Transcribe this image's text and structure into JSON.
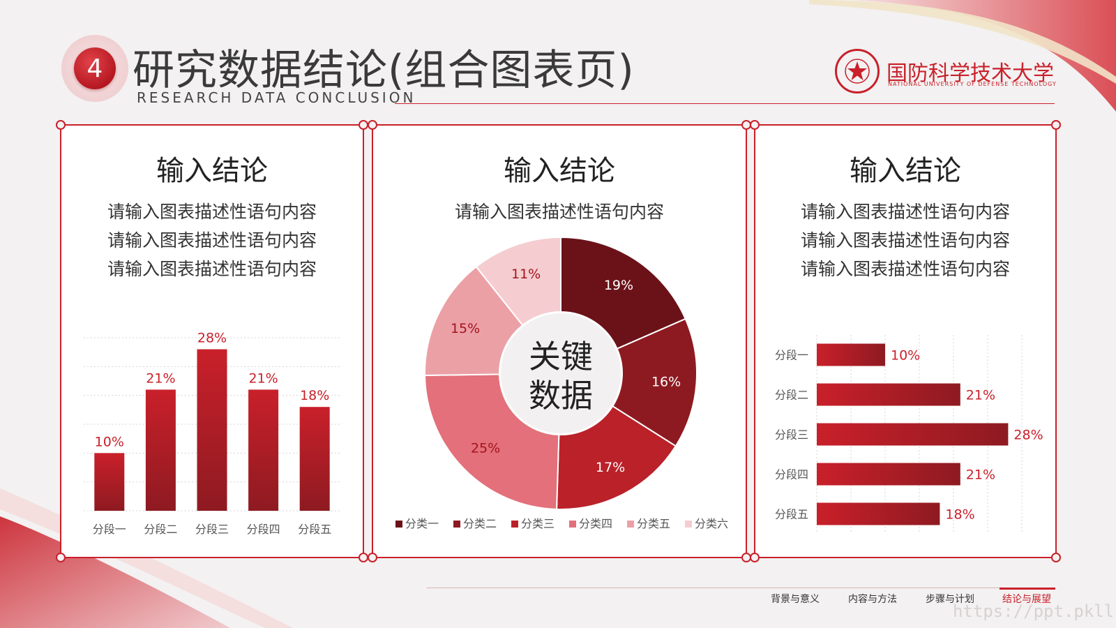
{
  "header": {
    "section_number": "4",
    "title": "研究数据结论(组合图表页)",
    "subtitle": "RESEARCH DATA CONCLUSION",
    "university_cn": "国防科学技术大学",
    "university_en": "NATIONAL UNIVERSITY OF DEFENSE TECHNOLOGY"
  },
  "panels": [
    {
      "heading": "输入结论",
      "lines": [
        "请输入图表描述性语句内容",
        "请输入图表描述性语句内容",
        "请输入图表描述性语句内容"
      ]
    },
    {
      "heading": "输入结论",
      "lines": [
        "请输入图表描述性语句内容"
      ],
      "center_label_1": "关键",
      "center_label_2": "数据"
    },
    {
      "heading": "输入结论",
      "lines": [
        "请输入图表描述性语句内容",
        "请输入图表描述性语句内容",
        "请输入图表描述性语句内容"
      ]
    }
  ],
  "chart_data": [
    {
      "type": "bar",
      "orientation": "vertical",
      "categories": [
        "分段一",
        "分段二",
        "分段三",
        "分段四",
        "分段五"
      ],
      "values": [
        10,
        21,
        28,
        21,
        18
      ],
      "value_labels": [
        "10%",
        "21%",
        "28%",
        "21%",
        "18%"
      ],
      "ylim": [
        0,
        30
      ],
      "grid": true
    },
    {
      "type": "pie",
      "donut": true,
      "categories": [
        "分类一",
        "分类二",
        "分类三",
        "分类四",
        "分类五",
        "分类六"
      ],
      "values": [
        19,
        16,
        17,
        25,
        15,
        11
      ],
      "value_labels": [
        "19%",
        "16%",
        "17%",
        "25%",
        "15%",
        "11%"
      ],
      "colors": [
        "#6b1219",
        "#8e1a21",
        "#bb2129",
        "#e3707a",
        "#eba0a6",
        "#f5cdd0"
      ],
      "legend": "bottom"
    },
    {
      "type": "bar",
      "orientation": "horizontal",
      "categories": [
        "分段一",
        "分段二",
        "分段三",
        "分段四",
        "分段五"
      ],
      "values": [
        10,
        21,
        28,
        21,
        18
      ],
      "value_labels": [
        "10%",
        "21%",
        "28%",
        "21%",
        "18%"
      ],
      "xlim": [
        0,
        30
      ],
      "grid": true
    }
  ],
  "footer": {
    "nav": [
      "背景与意义",
      "内容与方法",
      "步骤与计划",
      "结论与展望"
    ],
    "active_index": 3,
    "watermark": "https://ppt.pkll.de"
  },
  "colors": {
    "accent": "#c9202a",
    "bar_top": "#c9202a",
    "bar_bottom": "#8e1a21"
  }
}
